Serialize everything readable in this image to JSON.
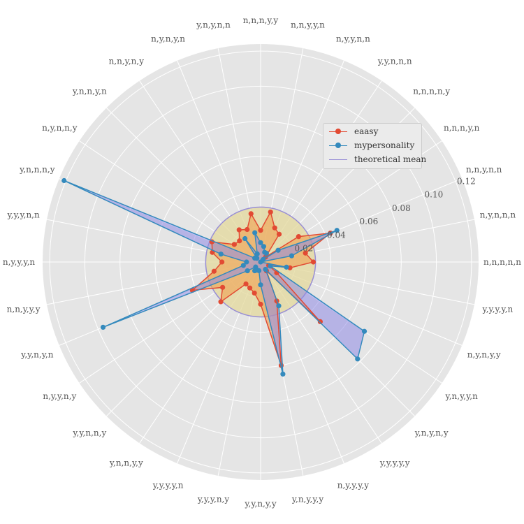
{
  "chart_data": {
    "type": "radar",
    "categories": [
      "n,n,n,n,n",
      "n,y,n,n,n",
      "n,n,y,n,n",
      "n,n,n,y,n",
      "n,n,n,n,y",
      "y,y,n,n,n",
      "n,y,y,n,n",
      "n,n,y,y,n",
      "n,n,n,y,y",
      "y,n,y,n,n",
      "n,y,n,y,n",
      "n,n,y,n,y",
      "y,n,n,y,n",
      "n,y,n,n,y",
      "y,n,n,n,y",
      "y,y,y,n,n",
      "n,y,y,y,n",
      "n,n,y,y,y",
      "y,y,n,y,n",
      "n,y,y,n,y",
      "y,y,n,n,y",
      "y,n,n,y,y",
      "y,y,y,y,n",
      "y,y,y,n,y",
      "y,y,n,y,y",
      "y,n,y,y,y",
      "n,y,y,y,y",
      "y,y,y,y,y",
      "y,n,y,n,y",
      "y,n,y,y,n",
      "n,y,n,y,y",
      "y,y,y,y,n"
    ],
    "series": [
      {
        "name": "eaasy",
        "color": "#e24a33",
        "values": [
          0.03,
          0.026,
          0.043,
          0.026,
          0.004,
          0.019,
          0.021,
          0.029,
          0.018,
          0.028,
          0.02,
          0.022,
          0.017,
          0.018,
          0.03,
          0.028,
          0.022,
          0.027,
          0.042,
          0.026,
          0.032,
          0.015,
          0.016,
          0.018,
          0.024,
          0.06,
          0.024,
          0.006,
          0.048,
          0.011,
          0.005,
          0.017
        ]
      },
      {
        "name": "mypersonality",
        "color": "#348abd",
        "values": [
          0.0,
          0.018,
          0.047,
          0.012,
          0.002,
          0.006,
          0.006,
          0.009,
          0.011,
          0.017,
          0.005,
          0.016,
          0.003,
          0.004,
          0.121,
          0.023,
          0.008,
          0.01,
          0.097,
          0.009,
          0.004,
          0.006,
          0.005,
          0.005,
          0.013,
          0.065,
          0.027,
          0.005,
          0.078,
          0.071,
          0.006,
          0.015
        ]
      }
    ],
    "reference": {
      "name": "theoretical mean",
      "value": 0.03125,
      "color": "#988ed5"
    },
    "r_ticks": [
      0.02,
      0.04,
      0.06,
      0.08,
      0.1,
      0.12
    ],
    "r_max": 0.124,
    "grid": true,
    "legend_position": "upper-right"
  }
}
